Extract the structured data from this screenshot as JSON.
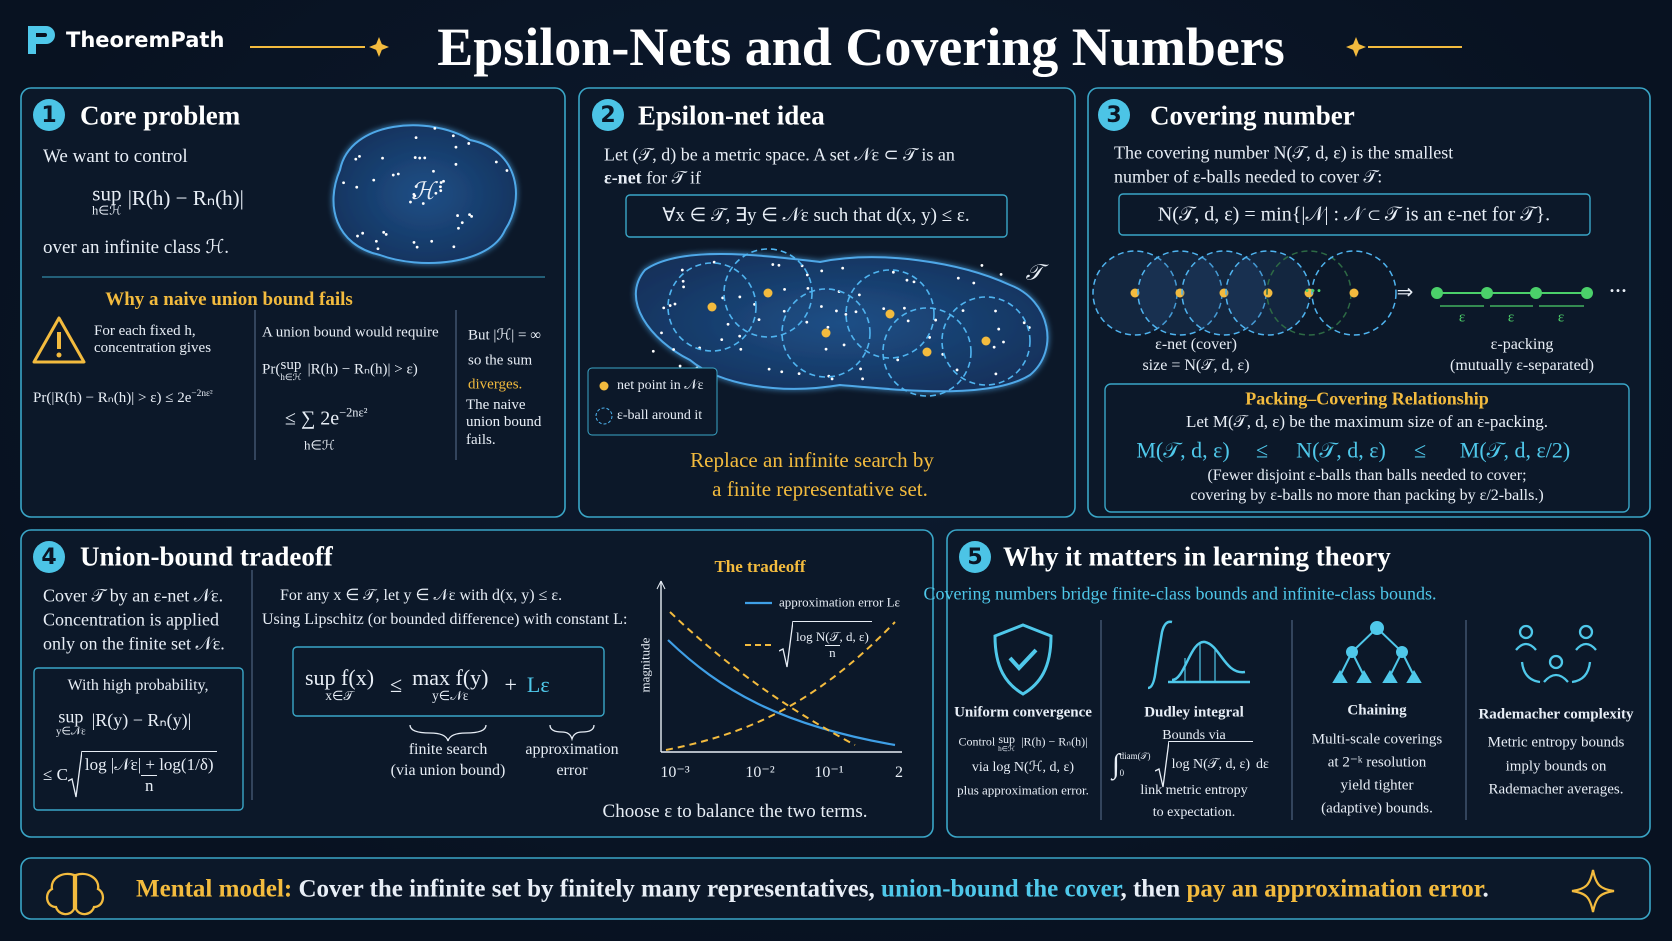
{
  "header": {
    "brand": "TheoremPath",
    "title": "Epsilon-Nets and Covering Numbers"
  },
  "panel1": {
    "number": "1",
    "title": "Core problem",
    "intro": "We want to control",
    "formula_op": "sup",
    "formula_sub": "h∈ℋ",
    "formula": "|R(h) − Rₙ(h)|",
    "outro": "over an infinite class  ℋ.",
    "blob_label": "ℋ",
    "subheading": "Why a naive union bound fails",
    "col1": {
      "text": "For each fixed h, concentration gives",
      "formula": "Pr(|R(h) − Rₙ(h)| > ε) ≤ 2e",
      "formula_sup": "−2nε²"
    },
    "col2": {
      "text": "A union bound would require",
      "formula_pre": "Pr(",
      "formula_op": "sup",
      "formula_sub": "h∈ℋ",
      "formula": "|R(h) − Rₙ(h)| > ε)",
      "sum": "≤ ∑ 2e",
      "sum_sup": "−2nε²",
      "sum_sub": "h∈ℋ"
    },
    "col3": {
      "lines": [
        "But |ℋ| = ∞",
        "so the sum"
      ],
      "highlight": "diverges.",
      "conclusion": "The naive union bound fails."
    }
  },
  "panel2": {
    "number": "2",
    "title": "Epsilon-net idea",
    "text": "Let (𝒯, d) be a metric space. A set 𝒩ε ⊂ 𝒯 is an",
    "def_bold": "ε-net",
    "def_rest": " for 𝒯 if",
    "formula": "∀x ∈ 𝒯,  ∃y ∈ 𝒩ε such that  d(x, y) ≤ ε.",
    "set_label": "𝒯",
    "legend": [
      "net point in 𝒩ε",
      "ε-ball around it"
    ],
    "caption": [
      "Replace an infinite search by",
      "a finite representative set."
    ]
  },
  "panel3": {
    "number": "3",
    "title": "Covering number",
    "text": [
      "The covering number N(𝒯, d, ε) is the smallest",
      "number of ε-balls needed to cover 𝒯:"
    ],
    "formula": "N(𝒯, d, ε) = min{|𝒩| : 𝒩 ⊂ 𝒯 is an ε-net for 𝒯}.",
    "cover_ellipsis": "···",
    "arrow": "⇒",
    "packing_ellipsis": "···",
    "eps_labels": [
      "ε",
      "ε",
      "ε"
    ],
    "cover_caption": [
      "ε-net (cover)",
      "size = N(𝒯, d, ε)"
    ],
    "packing_caption": [
      "ε-packing",
      "(mutually ε-separated)"
    ],
    "relationship": {
      "title": "Packing–Covering Relationship",
      "text": "Let M(𝒯, d, ε) be the maximum size of an ε-packing.",
      "inequality": [
        "M(𝒯, d, ε)",
        "≤",
        "N(𝒯, d, ε)",
        "≤",
        "M(𝒯, d, ε/2)"
      ],
      "note": [
        "(Fewer disjoint ε-balls than balls needed to cover;",
        "covering by ε-balls no more than packing by ε/2-balls.)"
      ]
    }
  },
  "panel4": {
    "number": "4",
    "title": "Union-bound tradeoff",
    "left": [
      "Cover 𝒯 by an ε-net 𝒩ε.",
      "Concentration is applied",
      "only on the finite set 𝒩ε."
    ],
    "box": {
      "title": "With high probability,",
      "op": "sup",
      "op_sub": "y∈𝒩ε",
      "formula": "|R(y) − Rₙ(y)|",
      "bound": "≤ C",
      "numerator": "log |𝒩ε| + log(1/δ)",
      "denominator": "n"
    },
    "middle": [
      "For any x ∈ 𝒯, let y ∈ 𝒩ε with d(x, y) ≤ ε.",
      "Using Lipschitz (or bounded difference) with constant L:"
    ],
    "formula": {
      "lhs": "sup f(x)",
      "lhs_sub": "x∈𝒯",
      "le": "≤",
      "rhs": "max f(y)",
      "rhs_sub": "y∈𝒩ε",
      "plus": "+",
      "term": "Lε"
    },
    "brace_labels": [
      [
        "finite search",
        "(via union bound)"
      ],
      [
        "approximation",
        "error"
      ]
    ],
    "chart": {
      "title": "The tradeoff",
      "ylabel": "magnitude",
      "legend_line": "approximation error Lε",
      "legend_numerator": "log N(𝒯, d, ε)",
      "legend_denominator": "n",
      "xticks": [
        "10⁻³",
        "10⁻²",
        "10⁻¹",
        "2"
      ]
    },
    "caption": "Choose ε to balance the two terms."
  },
  "panel5": {
    "number": "5",
    "title": "Why it matters in learning theory",
    "subtitle": "Covering numbers bridge finite-class bounds and infinite-class bounds.",
    "items": [
      {
        "title": "Uniform convergence",
        "pre": "Control",
        "op": "sup",
        "op_sub": "h∈ℋ",
        "formula": "|R(h) − Rₙ(h)|",
        "lines": [
          "via log N(ℋ, d, ε)",
          "plus approximation error."
        ]
      },
      {
        "title": "Dudley integral",
        "pre": "Bounds via",
        "integral": "∫",
        "upper": "diam(𝒯)",
        "lower": "0",
        "radicand": "log N(𝒯, d, ε)",
        "diff": "dε",
        "lines": [
          "link metric entropy",
          "to expectation."
        ]
      },
      {
        "title": "Chaining",
        "lines": [
          "Multi-scale coverings",
          "at 2⁻ᵏ resolution",
          "yield tighter",
          "(adaptive) bounds."
        ]
      },
      {
        "title": "Rademacher complexity",
        "lines": [
          "Metric entropy bounds",
          "imply bounds on",
          "Rademacher averages."
        ]
      }
    ]
  },
  "footer": {
    "label": "Mental model:",
    "parts": [
      "Cover the infinite set by finitely many representatives, ",
      "union-bound the cover",
      ", then ",
      "pay an approximation error",
      "."
    ]
  }
}
